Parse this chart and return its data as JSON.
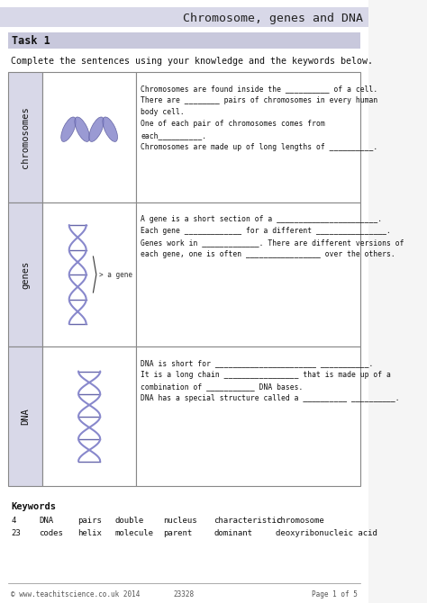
{
  "title": "Chromosome, genes and DNA",
  "task_label": "Task 1",
  "instruction": "Complete the sentences using your knowledge and the keywords below.",
  "header_bg": "#c8c8dc",
  "task_bg": "#d8d8e8",
  "cell_label_bg": "#d8d8e8",
  "table_border": "#888888",
  "page_bg": "#f0f0f0",
  "white": "#ffffff",
  "rows": [
    {
      "label": "chromosomes",
      "text_lines": [
        "Chromosomes are found inside the __________ of a cell.",
        "There are ________ pairs of chromosomes in every human",
        "body cell.",
        "One of each pair of chromosomes comes from",
        "each__________.",
        "Chromosomes are made up of long lengths of __________."
      ]
    },
    {
      "label": "genes",
      "text_lines": [
        "A gene is a short section of a _______________________.",
        "Each gene _____________ for a different ________________.",
        "Genes work in _____________. There are different versions of",
        "each gene, one is often _________________ over the others."
      ]
    },
    {
      "label": "DNA",
      "text_lines": [
        "DNA is short for _______________________ ___________.",
        "It is a long chain _________________ that is made up of a",
        "combination of ___________ DNA bases.",
        "DNA has a special structure called a __________ __________."
      ]
    }
  ],
  "keywords_title": "Keywords",
  "keywords_rows": [
    [
      "4",
      "DNA",
      "pairs",
      "double",
      "nucleus",
      "characteristic",
      "chromosome"
    ],
    [
      "23",
      "codes",
      "helix",
      "molecule",
      "parent",
      "dominant",
      "deoxyribonucleic acid"
    ]
  ],
  "footer_left": "© www.teachitscience.co.uk 2014",
  "footer_center": "23328",
  "footer_right": "Page 1 of 5"
}
